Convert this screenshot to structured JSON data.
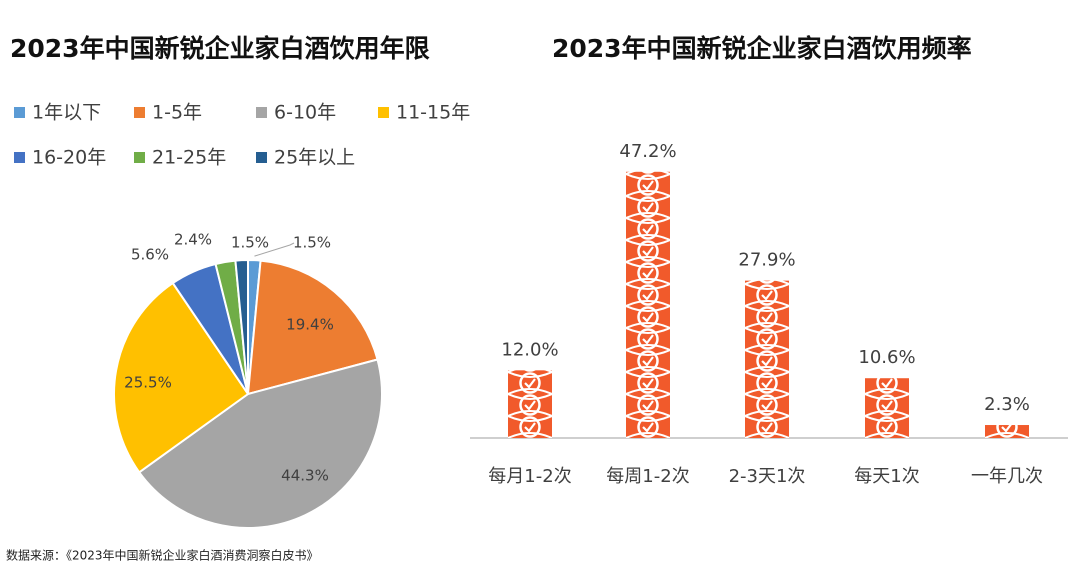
{
  "chart_data": [
    {
      "type": "pie",
      "title": "2023年中国新锐企业家白酒饮用年限",
      "categories": [
        "1年以下",
        "1-5年",
        "6-10年",
        "11-15年",
        "16-20年",
        "21-25年",
        "25年以上"
      ],
      "values": [
        1.5,
        19.4,
        44.3,
        25.5,
        5.6,
        2.4,
        1.5
      ],
      "value_labels": [
        "1.5%",
        "19.4%",
        "44.3%",
        "25.5%",
        "5.6%",
        "2.4%",
        "1.5%"
      ],
      "colors": [
        "#5b9bd5",
        "#ed7d31",
        "#a5a5a5",
        "#ffc000",
        "#4472c4",
        "#70ad47",
        "#255e91"
      ],
      "legend": "top"
    },
    {
      "type": "bar",
      "title": "2023年中国新锐企业家白酒饮用频率",
      "categories": [
        "每月1-2次",
        "每周1-2次",
        "2-3天1次",
        "每天1次",
        "一年几次"
      ],
      "values": [
        12.0,
        47.2,
        27.9,
        10.6,
        2.3
      ],
      "value_labels": [
        "12.0%",
        "47.2%",
        "27.9%",
        "10.6%",
        "2.3%"
      ],
      "color": "#f15a2b"
    }
  ],
  "source": "数据来源：《2023年中国新锐企业家白酒消费洞察白皮书》"
}
